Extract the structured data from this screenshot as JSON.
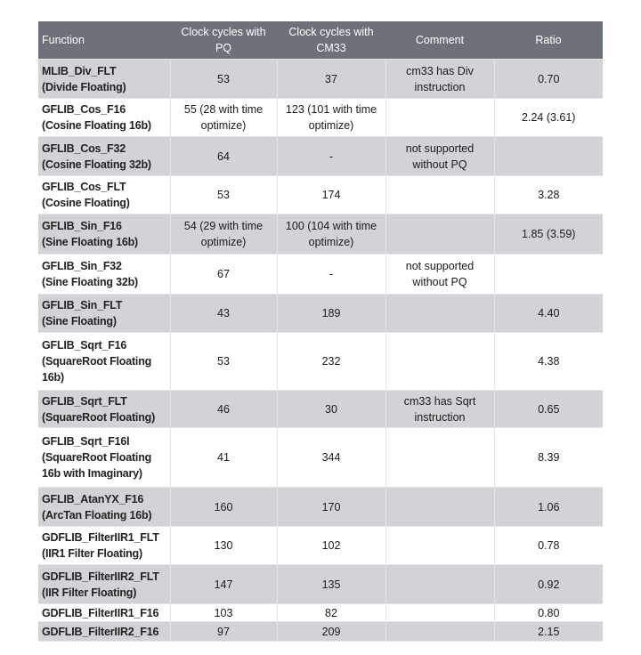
{
  "headers": [
    "Function",
    "Clock cycles with PQ",
    "Clock cycles with CM33",
    "Comment",
    "Ratio"
  ],
  "colors": {
    "header_bg": "#6c717a",
    "shaded_row": "#d1d3d7"
  },
  "rows": [
    {
      "function": "MLIB_Div_FLT",
      "desc": "(Divide Floating)",
      "pq": "53",
      "cm33": "37",
      "comment": "cm33 has Div instruction",
      "ratio": "0.70"
    },
    {
      "function": "GFLIB_Cos_F16",
      "desc": "(Cosine Floating 16b)",
      "pq": "55 (28 with time optimize)",
      "cm33": "123 (101 with time optimize)",
      "comment": "",
      "ratio": "2.24 (3.61)"
    },
    {
      "function": "GFLIB_Cos_F32",
      "desc": "(Cosine Floating 32b)",
      "pq": "64",
      "cm33": "-",
      "comment": "not supported without PQ",
      "ratio": ""
    },
    {
      "function": "GFLIB_Cos_FLT",
      "desc": "(Cosine Floating)",
      "pq": "53",
      "cm33": "174",
      "comment": "",
      "ratio": "3.28"
    },
    {
      "function": "GFLIB_Sin_F16",
      "desc": "(Sine Floating 16b)",
      "pq": "54 (29 with time optimize)",
      "cm33": "100 (104 with time optimize)",
      "comment": "",
      "ratio": "1.85 (3.59)"
    },
    {
      "function": "GFLIB_Sin_F32",
      "desc": "(Sine Floating 32b)",
      "pq": "67",
      "cm33": "-",
      "comment": "not supported without PQ",
      "ratio": ""
    },
    {
      "function": "GFLIB_Sin_FLT",
      "desc": "(Sine Floating)",
      "pq": "43",
      "cm33": "189",
      "comment": "",
      "ratio": "4.40"
    },
    {
      "function": "GFLIB_Sqrt_F16",
      "desc": "(SquareRoot Floating 16b)",
      "pq": "53",
      "cm33": "232",
      "comment": "",
      "ratio": "4.38"
    },
    {
      "function": "GFLIB_Sqrt_FLT",
      "desc": "(SquareRoot Floating)",
      "pq": "46",
      "cm33": "30",
      "comment": "cm33 has Sqrt instruction",
      "ratio": "0.65"
    },
    {
      "function": "GFLIB_Sqrt_F16l",
      "desc": "(SquareRoot Floating 16b with Imaginary)",
      "pq": "41",
      "cm33": "344",
      "comment": "",
      "ratio": "8.39"
    },
    {
      "function": "GFLIB_AtanYX_F16",
      "desc": "(ArcTan Floating 16b)",
      "pq": "160",
      "cm33": "170",
      "comment": "",
      "ratio": "1.06"
    },
    {
      "function": "GDFLIB_FilterIIR1_FLT",
      "desc": "(IIR1 Filter Floating)",
      "pq": "130",
      "cm33": "102",
      "comment": "",
      "ratio": "0.78"
    },
    {
      "function": "GDFLIB_FilterIIR2_FLT",
      "desc": "(IIR Filter Floating)",
      "pq": "147",
      "cm33": "135",
      "comment": "",
      "ratio": "0.92"
    },
    {
      "function": "GDFLIB_FilterIIR1_F16",
      "desc": "",
      "pq": "103",
      "cm33": "82",
      "comment": "",
      "ratio": "0.80"
    },
    {
      "function": "GDFLIB_FilterIIR2_F16",
      "desc": "",
      "pq": "97",
      "cm33": "209",
      "comment": "",
      "ratio": "2.15"
    }
  ]
}
